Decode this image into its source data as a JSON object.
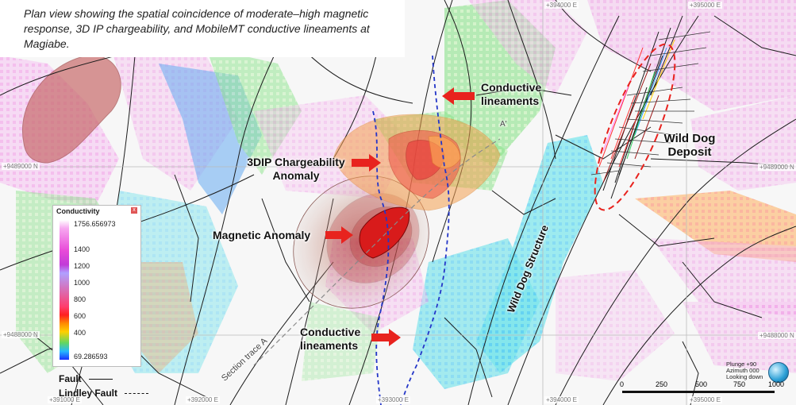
{
  "caption": "Plan view showing the spatial coincidence of moderate–high magnetic response, 3D IP chargeability, and MobileMT conductive lineaments at Magiabe.",
  "labels": {
    "conductive_top": "Conductive lineaments",
    "chargeability": "3DIP Chargeability Anomaly",
    "magnetic": "Magnetic Anomaly",
    "conductive_bottom": "Conductive lineaments",
    "wild_dog_deposit": "Wild Dog Deposit",
    "wild_dog_structure": "Wild Dog Structure",
    "section_trace": "Section trace A",
    "section_end": "A'"
  },
  "coords": {
    "n1": "+9489000 N",
    "n1_right": "+9489000 N",
    "n2": "+9488000 N",
    "n2_right": "+9488000 N",
    "e_top1": "+394000 E",
    "e_top2": "+395000 E",
    "e_bot1": "+391000 E",
    "e_bot2": "+392000 E",
    "e_bot3": "+393000 E",
    "e_bot4": "+394000 E",
    "e_bot5": "+395000 E"
  },
  "legend": {
    "title": "Conductivity",
    "close": "x",
    "ticks": [
      "1756.656973",
      "1400",
      "1200",
      "1000",
      "800",
      "600",
      "400",
      "69.286593"
    ],
    "fault": "Fault",
    "lindley_fault": "Lindley Fault"
  },
  "scale": {
    "ticks": [
      "0",
      "250",
      "500",
      "750",
      "1000"
    ]
  },
  "orientation": {
    "plunge": "Plunge +90",
    "azimuth": "Azimuth 000",
    "looking": "Looking down"
  },
  "colors": {
    "arrow": "#e8231e",
    "magnetic_core": "#d81b1b",
    "deposit_outline": "#e8231e",
    "conductive_lineament": "#2436c8"
  }
}
